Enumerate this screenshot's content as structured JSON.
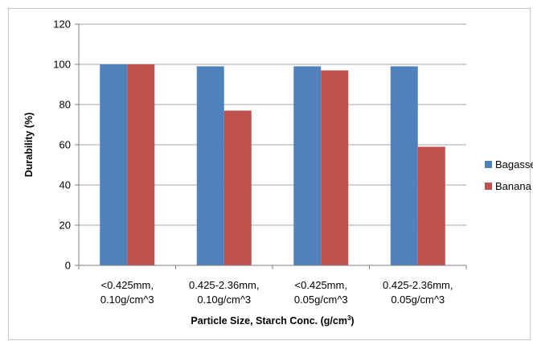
{
  "chart_data": {
    "type": "bar",
    "categories": [
      [
        "<0.425mm,",
        "0.10g/cm^3"
      ],
      [
        "0.425-2.36mm,",
        "0.10g/cm^3"
      ],
      [
        "<0.425mm,",
        "0.05g/cm^3"
      ],
      [
        "0.425-2.36mm,",
        "0.05g/cm^3"
      ]
    ],
    "series": [
      {
        "name": "Bagasse",
        "color": "#4f81bd",
        "values": [
          100,
          99,
          99,
          99
        ]
      },
      {
        "name": "Banana",
        "color": "#c0504d",
        "values": [
          100,
          77,
          97,
          59
        ]
      }
    ],
    "title": "",
    "ylabel": "Durability (%)",
    "xlabel_main": "Particle Size, Starch Conc. (g/cm",
    "xlabel_sup": "3",
    "xlabel_end": ")",
    "ylim": [
      0,
      120
    ],
    "yticks": [
      0,
      20,
      40,
      60,
      80,
      100,
      120
    ],
    "grid": true,
    "legend_position": "right"
  }
}
